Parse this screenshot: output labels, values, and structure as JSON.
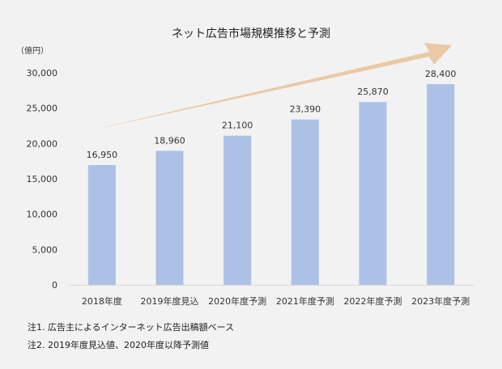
{
  "chart_data": {
    "type": "bar",
    "title": "ネット広告市場規模推移と予測",
    "unit_label": "（億円）",
    "categories": [
      "2018年度",
      "2019年度見込",
      "2020年度予測",
      "2021年度予測",
      "2022年度予測",
      "2023年度予測"
    ],
    "values": [
      16950,
      18960,
      21100,
      23390,
      25870,
      28400
    ],
    "value_labels": [
      "16,950",
      "18,960",
      "21,100",
      "23,390",
      "25,870",
      "28,400"
    ],
    "ylim": [
      0,
      30000
    ],
    "yticks": [
      0,
      5000,
      10000,
      15000,
      20000,
      25000,
      30000
    ],
    "ytick_labels": [
      "0",
      "5,000",
      "10,000",
      "15,000",
      "20,000",
      "25,000",
      "30,000"
    ],
    "grid": false,
    "trend_arrow": true
  },
  "colors": {
    "bar": "#adc1e6",
    "arrow": "#eac9a5",
    "axis": "#d9d9d9",
    "background": "#f2f2f2"
  },
  "notes": [
    "注1. 広告主によるインターネット広告出稿額ベース",
    "注2. 2019年度見込値、2020年度以降予測値"
  ]
}
